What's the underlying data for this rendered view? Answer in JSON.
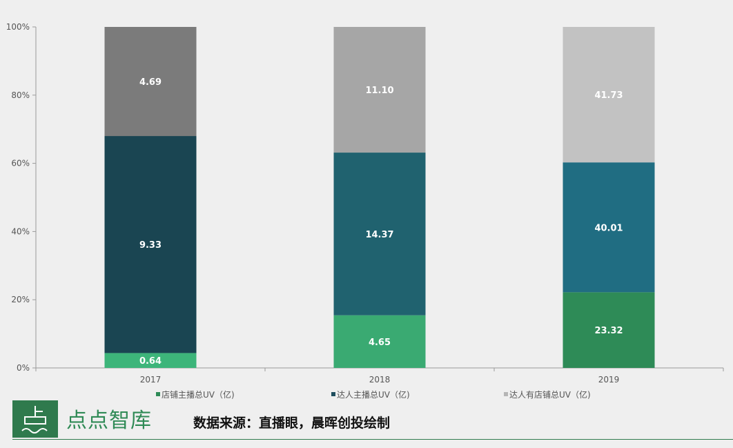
{
  "chart_data": {
    "type": "bar",
    "stacked": "percent",
    "categories": [
      "2017",
      "2018",
      "2019"
    ],
    "series": [
      {
        "name": "店铺主播总UV（亿)",
        "values": [
          0.64,
          4.65,
          23.32
        ],
        "labels": [
          "0.64",
          "4.65",
          "23.32"
        ],
        "colors": [
          "#3db57a",
          "#3aaa72",
          "#2e8b57"
        ]
      },
      {
        "name": "达人主播总UV（亿)",
        "values": [
          9.33,
          14.37,
          40.01
        ],
        "labels": [
          "9.33",
          "14.37",
          "40.01"
        ],
        "colors": [
          "#1a4552",
          "#20626f",
          "#206d82"
        ]
      },
      {
        "name": "达人有店铺总UV（亿)",
        "values": [
          4.69,
          11.1,
          41.73
        ],
        "labels": [
          "4.69",
          "11.10",
          "41.73"
        ],
        "colors": [
          "#7b7b7b",
          "#a6a6a6",
          "#c2c2c2"
        ]
      }
    ],
    "legend_colors": [
      "#2e8b57",
      "#1f4e5e",
      "#b5b5b5"
    ],
    "yticks": [
      "0%",
      "20%",
      "40%",
      "60%",
      "80%",
      "100%"
    ],
    "ylim": [
      0,
      100
    ],
    "legend_position": "bottom"
  },
  "footer": {
    "brand": "点点智库",
    "source": "数据来源：直播眼，晨晖创投绘制"
  }
}
